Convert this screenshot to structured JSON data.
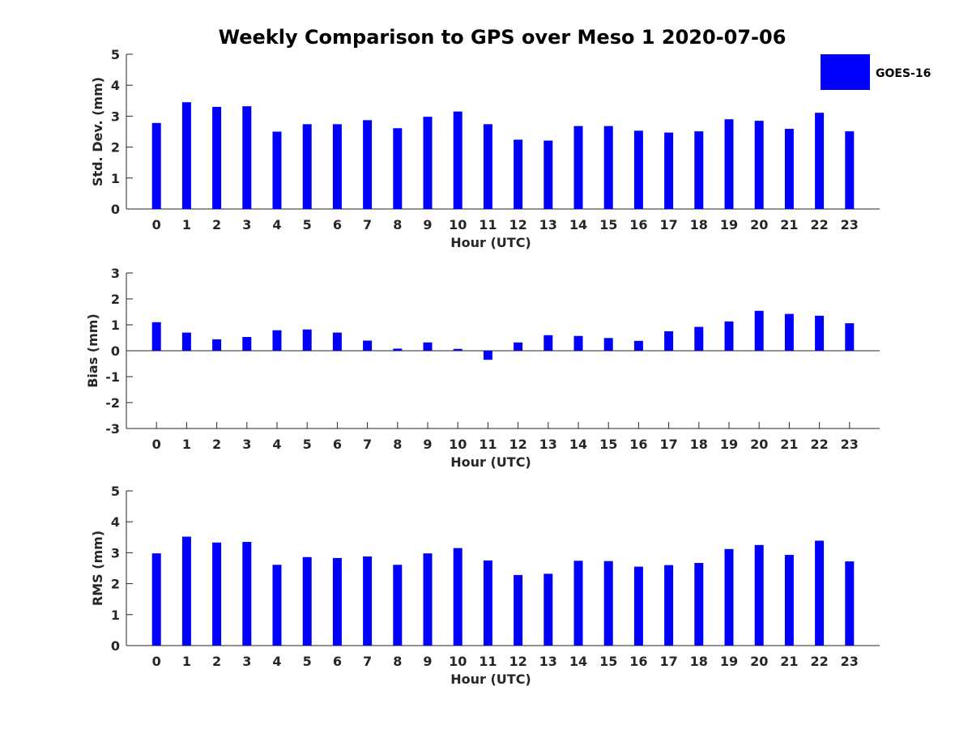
{
  "chart_data": {
    "type": "bar",
    "title": "Weekly Comparison to GPS over Meso 1 2020-07-06",
    "legend": {
      "entries": [
        "GOES-16"
      ],
      "placement": "top-right"
    },
    "colors": {
      "bar": "#0000ff",
      "axis": "#262626"
    },
    "categories": [
      "0",
      "1",
      "2",
      "3",
      "4",
      "5",
      "6",
      "7",
      "8",
      "9",
      "10",
      "11",
      "12",
      "13",
      "14",
      "15",
      "16",
      "17",
      "18",
      "19",
      "20",
      "21",
      "22",
      "23"
    ],
    "panels": [
      {
        "id": "std",
        "ylabel": "Std. Dev. (mm)",
        "xlabel": "Hour (UTC)",
        "ylim": [
          0,
          5
        ],
        "yticks": [
          "0",
          "1",
          "2",
          "3",
          "4",
          "5"
        ],
        "series": [
          {
            "name": "GOES-16",
            "values": [
              2.78,
              3.45,
              3.3,
              3.32,
              2.5,
              2.74,
              2.74,
              2.87,
              2.61,
              2.98,
              3.15,
              2.74,
              2.24,
              2.21,
              2.68,
              2.68,
              2.53,
              2.47,
              2.51,
              2.9,
              2.85,
              2.59,
              3.11,
              2.51
            ]
          }
        ]
      },
      {
        "id": "bias",
        "ylabel": "Bias (mm)",
        "xlabel": "Hour (UTC)",
        "ylim": [
          -3,
          3
        ],
        "yticks": [
          "-3",
          "-2",
          "-1",
          "0",
          "1",
          "2",
          "3"
        ],
        "series": [
          {
            "name": "GOES-16",
            "values": [
              1.1,
              0.7,
              0.44,
              0.53,
              0.79,
              0.82,
              0.7,
              0.39,
              0.08,
              0.32,
              0.07,
              -0.35,
              0.32,
              0.6,
              0.57,
              0.49,
              0.38,
              0.75,
              0.92,
              1.13,
              1.54,
              1.42,
              1.35,
              1.06
            ]
          }
        ]
      },
      {
        "id": "rms",
        "ylabel": "RMS (mm)",
        "xlabel": "Hour (UTC)",
        "ylim": [
          0,
          5
        ],
        "yticks": [
          "0",
          "1",
          "2",
          "3",
          "4",
          "5"
        ],
        "series": [
          {
            "name": "GOES-16",
            "values": [
              2.98,
              3.52,
              3.33,
              3.35,
              2.61,
              2.86,
              2.83,
              2.88,
              2.61,
              2.98,
              3.15,
              2.75,
              2.28,
              2.32,
              2.74,
              2.73,
              2.55,
              2.6,
              2.67,
              3.12,
              3.25,
              2.93,
              3.39,
              2.72
            ]
          }
        ]
      }
    ]
  }
}
